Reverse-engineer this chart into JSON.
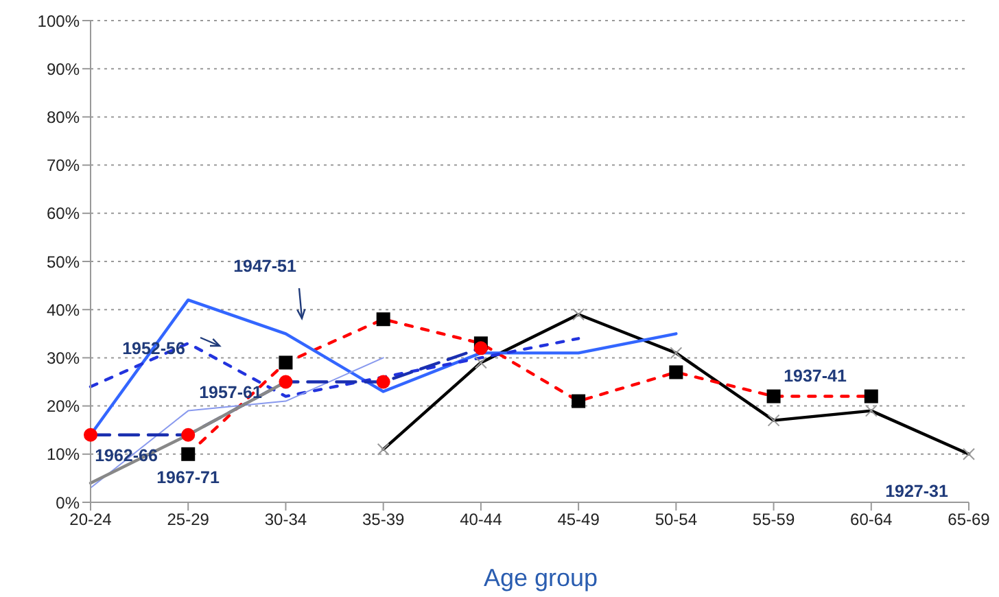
{
  "chart_data": {
    "type": "line",
    "xlabel": "Age group",
    "categories": [
      "20-24",
      "25-29",
      "30-34",
      "35-39",
      "40-44",
      "45-49",
      "50-54",
      "55-59",
      "60-64",
      "65-69"
    ],
    "series": [
      {
        "name": "1927-31",
        "color": "#000000",
        "line_style": "solid",
        "marker": "cross",
        "colors": [
          null,
          null,
          null,
          "#999999",
          "#999999",
          "#999999",
          "#999999",
          "#999999",
          "#999999",
          "#999999"
        ],
        "values": [
          null,
          null,
          null,
          11,
          29,
          39,
          31,
          17,
          19,
          10
        ]
      },
      {
        "name": "1937-41",
        "color": "#ff0000",
        "line_style": "dotted",
        "marker": "square",
        "colors": [
          null,
          "#000000",
          "#000000",
          "#000000",
          "#000000",
          "#000000",
          "#000000",
          "#000000",
          "#000000",
          null
        ],
        "values": [
          null,
          10,
          29,
          38,
          33,
          21,
          27,
          22,
          22,
          null
        ]
      },
      {
        "name": "1947-51",
        "color": "#3366ff",
        "line_style": "solid",
        "marker": "none",
        "values": [
          14,
          42,
          35,
          23,
          31,
          31,
          35,
          null,
          null,
          null
        ]
      },
      {
        "name": "1952-56",
        "color": "#2233dd",
        "line_style": "dotted",
        "marker": "none",
        "values": [
          24,
          33,
          22,
          26,
          30,
          34,
          null,
          null,
          null,
          null
        ]
      },
      {
        "name": "1957-61",
        "color": "#8899ee",
        "line_style": "solid",
        "marker": "none",
        "values": [
          3,
          19,
          21,
          30,
          null,
          null,
          null,
          null,
          null,
          null
        ]
      },
      {
        "name": "1962-66",
        "color": "#1a2fb0",
        "line_style": "dashed",
        "marker": "circle",
        "colors": [
          "#ff0000",
          "#ff0000",
          "#ff0000",
          "#ff0000",
          "#ff0000",
          null,
          null,
          null,
          null,
          null
        ],
        "values": [
          14,
          14,
          25,
          25,
          32,
          null,
          null,
          null,
          null,
          null
        ]
      },
      {
        "name": "1967-71",
        "color": "#888888",
        "line_style": "solid",
        "marker": "none",
        "values": [
          4,
          14,
          25,
          null,
          null,
          null,
          null,
          null,
          null,
          null
        ]
      }
    ],
    "ylim": [
      0,
      100
    ],
    "yticks": [
      {
        "value": 0,
        "label": "0%"
      },
      {
        "value": 10,
        "label": "10%"
      },
      {
        "value": 20,
        "label": "20%"
      },
      {
        "value": 30,
        "label": "30%"
      },
      {
        "value": 40,
        "label": "40%"
      },
      {
        "value": 50,
        "label": "50%"
      },
      {
        "value": 60,
        "label": "60%"
      },
      {
        "value": 70,
        "label": "70%"
      },
      {
        "value": 80,
        "label": "80%"
      },
      {
        "value": 90,
        "label": "90%"
      },
      {
        "value": 100,
        "label": "100%"
      }
    ],
    "grid": "y"
  }
}
